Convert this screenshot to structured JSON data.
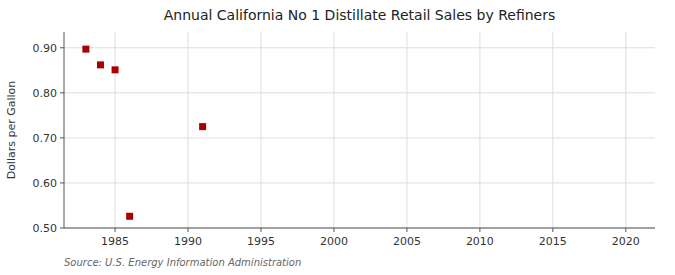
{
  "chart_data": {
    "type": "scatter",
    "title": "Annual California No 1 Distillate Retail Sales by Refiners",
    "y_label": "Dollars per Gallon",
    "source": "Source: U.S. Energy Information Administration",
    "x": [
      1983,
      1984,
      1985,
      1986,
      1991
    ],
    "values": [
      0.897,
      0.862,
      0.851,
      0.526,
      0.725
    ],
    "color": "#aa0000",
    "marker": "square",
    "xlim": [
      1981.5,
      2022
    ],
    "ylim": [
      0.5,
      0.935
    ],
    "xticks": [
      1985,
      1990,
      1995,
      2000,
      2005,
      2010,
      2015,
      2020
    ],
    "yticks": [
      {
        "value": 0.5,
        "label": "0.50"
      },
      {
        "value": 0.6,
        "label": "0.60"
      },
      {
        "value": 0.7,
        "label": "0.70"
      },
      {
        "value": 0.8,
        "label": "0.80"
      },
      {
        "value": 0.9,
        "label": "0.90"
      }
    ],
    "grid": true
  }
}
